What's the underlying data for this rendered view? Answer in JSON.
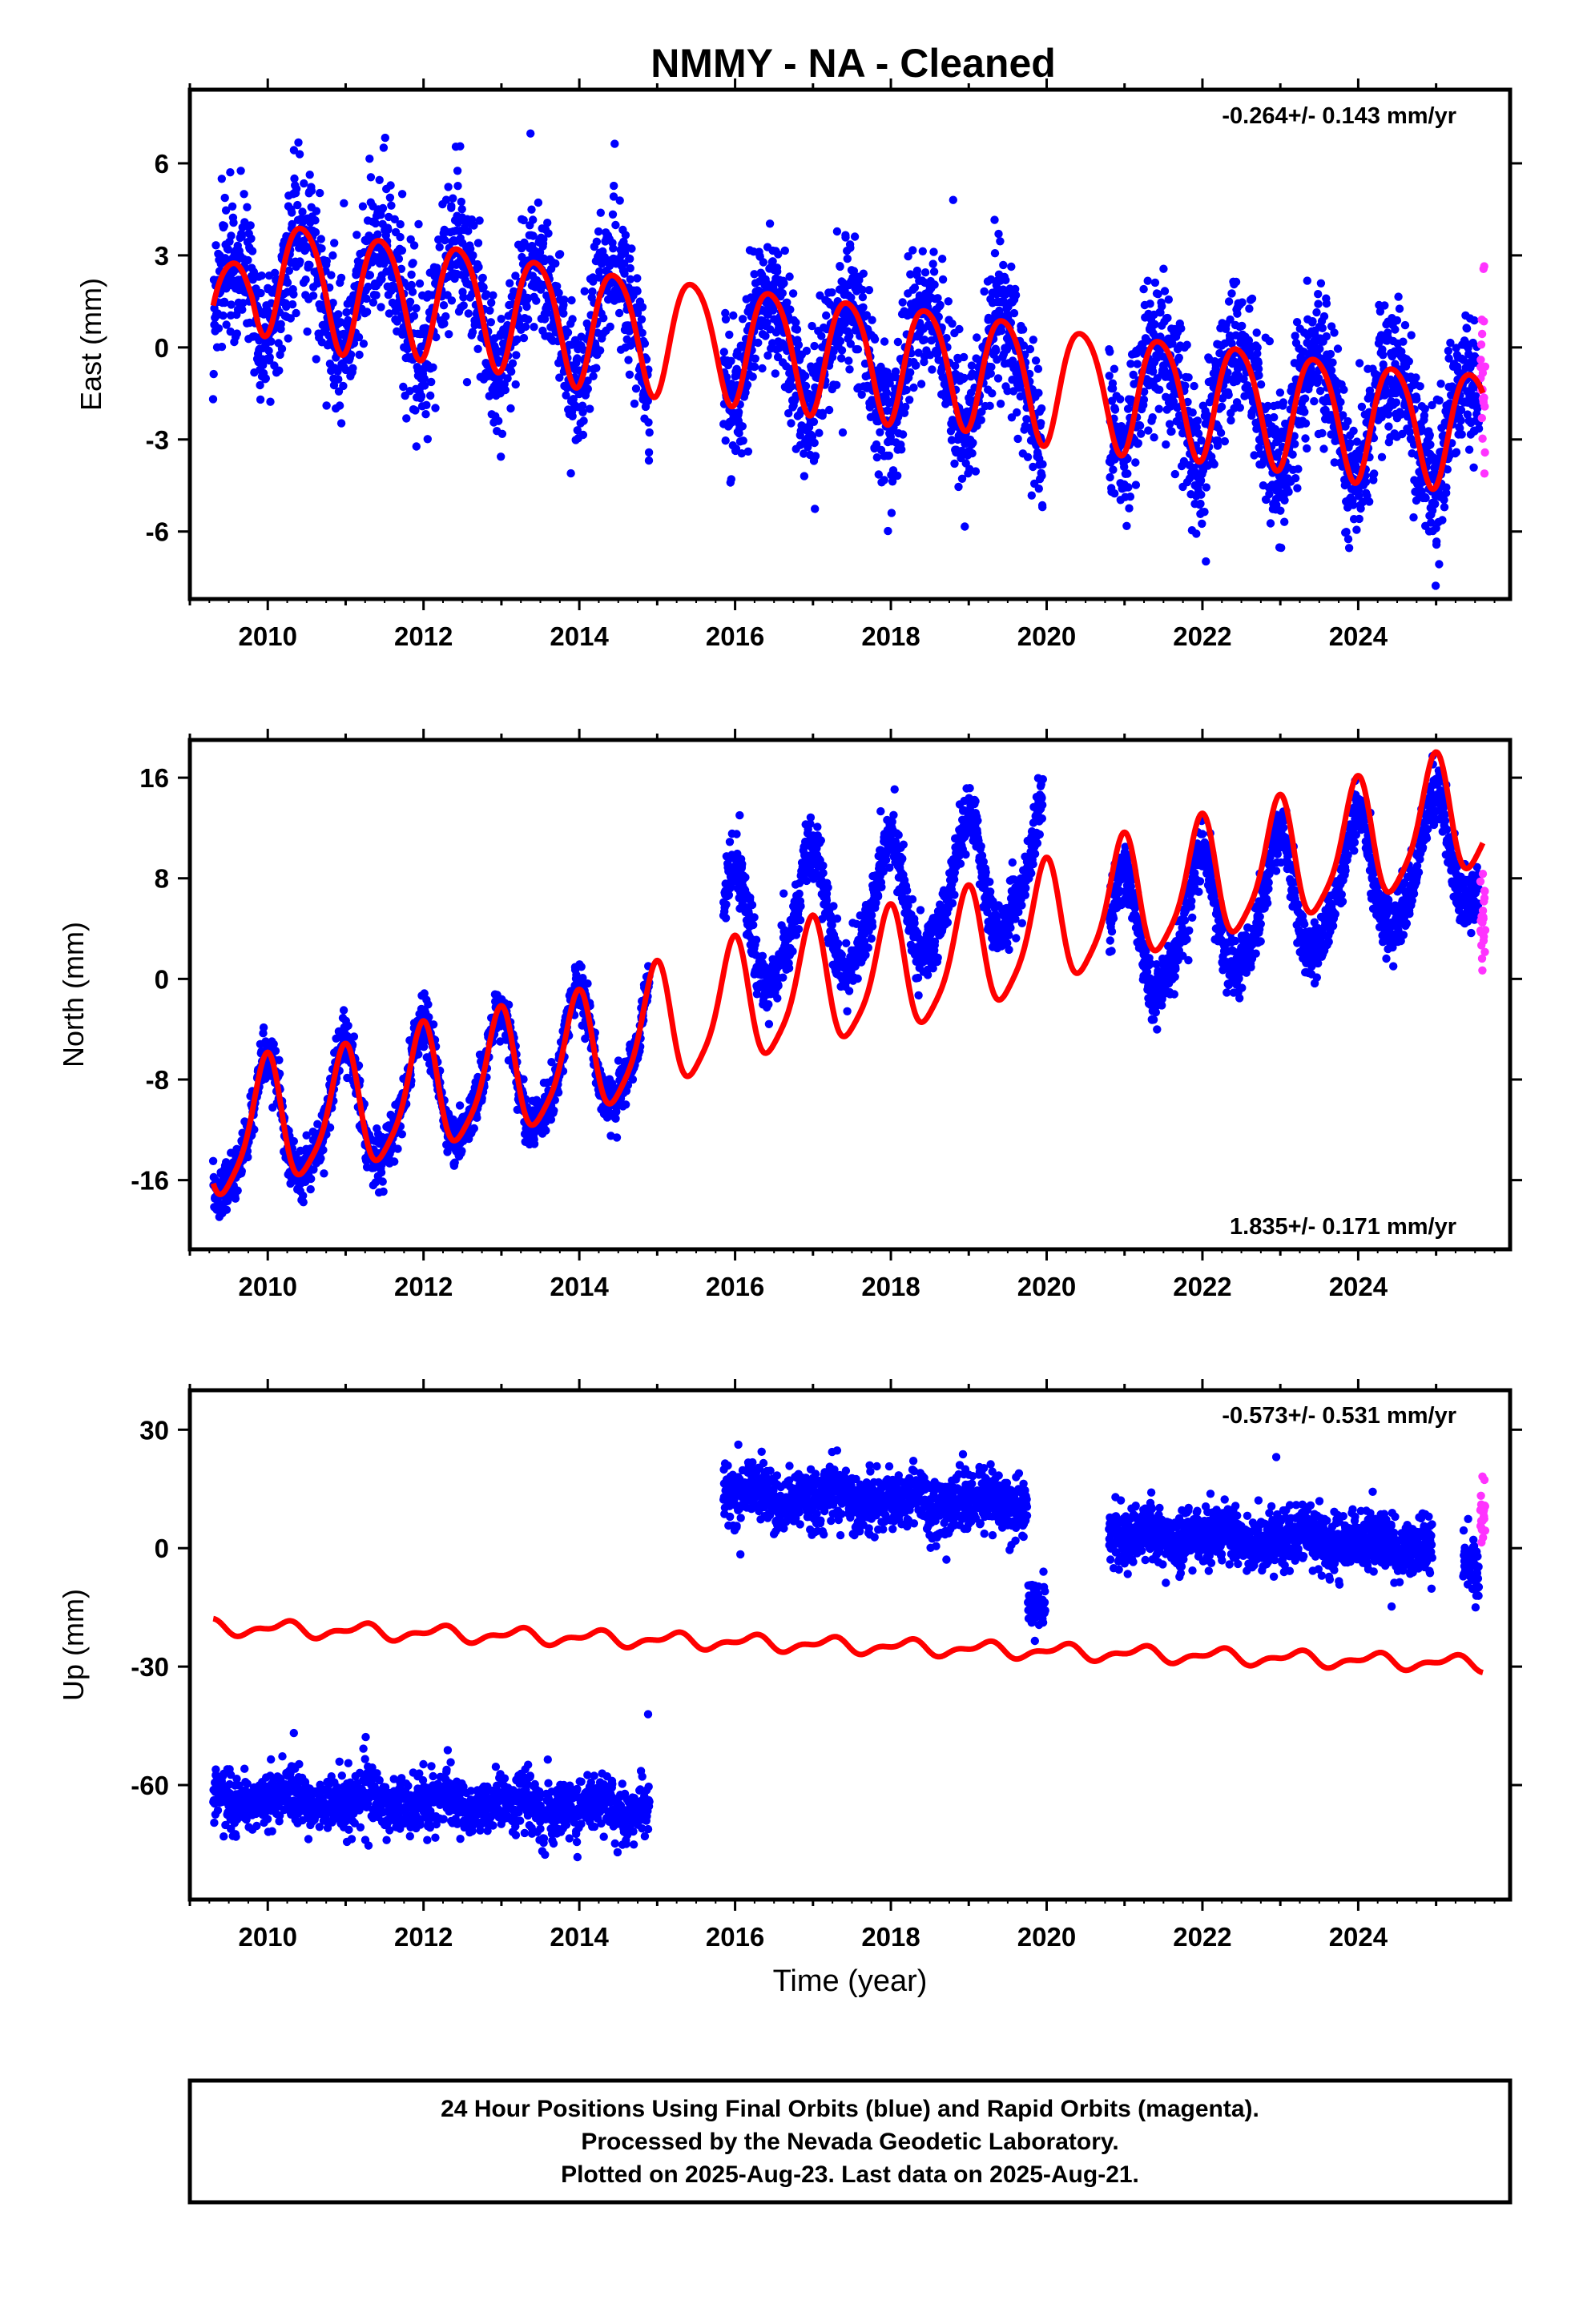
{
  "chart_data": {
    "type": "scatter",
    "title": "NMMY  - NA - Cleaned",
    "xlabel": "Time (year)",
    "x_ticks": [
      2010,
      2012,
      2014,
      2016,
      2018,
      2020,
      2022,
      2024
    ],
    "xlim": [
      2009.0,
      2025.95
    ],
    "colors": {
      "final": "#0000ff",
      "rapid": "#ff33ff",
      "model": "#ff0000"
    },
    "panels": [
      {
        "ylabel": "East (mm)",
        "ylim": [
          -8.2,
          8.4
        ],
        "y_ticks": [
          6,
          3,
          0,
          -3,
          -6
        ],
        "y_tick_labels": [
          "6",
          "3",
          "0",
          "-3",
          "-6"
        ],
        "rate_label": "-0.264+/- 0.143 mm/yr",
        "rate_position": "top-right",
        "model": {
          "offset": 0.8,
          "rate": -0.264,
          "amp": 1.9,
          "phase": 0.2,
          "amp2": 0.25,
          "phase2": 0.1,
          "steps": [],
          "knots": [
            [
              2009.3,
              0.1
            ],
            [
              2009.8,
              2.6
            ],
            [
              2010.9,
              1.9
            ],
            [
              2012.0,
              1.7
            ],
            [
              2013.0,
              1.3
            ],
            [
              2014.0,
              0.8
            ],
            [
              2015.0,
              0.5
            ],
            [
              2016.0,
              0.2
            ],
            [
              2017.0,
              -0.1
            ],
            [
              2018.0,
              -0.4
            ],
            [
              2019.0,
              -0.6
            ],
            [
              2020.0,
              -1.1
            ],
            [
              2021.0,
              -1.4
            ],
            [
              2022.0,
              -1.6
            ],
            [
              2023.0,
              -1.9
            ],
            [
              2024.0,
              -2.3
            ],
            [
              2025.6,
              -2.6
            ]
          ]
        },
        "point_groups": [
          {
            "series": "final",
            "start": 2009.3,
            "end": 2014.9,
            "count": 1450,
            "noise": 1.1
          },
          {
            "series": "final",
            "start": 2015.85,
            "end": 2019.95,
            "count": 1150,
            "noise": 1.1
          },
          {
            "series": "final",
            "start": 2020.8,
            "end": 2025.55,
            "count": 1350,
            "noise": 1.1
          },
          {
            "series": "rapid",
            "start": 2025.57,
            "end": 2025.63,
            "count": 22,
            "noise": 1.6
          }
        ]
      },
      {
        "ylabel": "North (mm)",
        "ylim": [
          -21.5,
          19
        ],
        "y_ticks": [
          16,
          8,
          0,
          -8,
          -16
        ],
        "y_tick_labels": [
          "16",
          "8",
          "0",
          "-8",
          "-16"
        ],
        "rate_label": "1.835+/- 0.171 mm/yr",
        "rate_position": "bottom-right",
        "model": {
          "offset": -13.0,
          "rate": 1.835,
          "amp": 4.8,
          "phase": 1.72,
          "amp2": 1.0,
          "phase2": 0.4,
          "steps": [],
          "knots": [
            [
              2009.3,
              -13.0
            ],
            [
              2010.0,
              -11.5
            ],
            [
              2011.0,
              -10.8
            ],
            [
              2012.0,
              -9.0
            ],
            [
              2013.0,
              -7.8
            ],
            [
              2014.0,
              -6.5
            ],
            [
              2015.0,
              -4.2
            ],
            [
              2016.0,
              -2.2
            ],
            [
              2017.0,
              -0.6
            ],
            [
              2018.0,
              0.3
            ],
            [
              2019.0,
              1.8
            ],
            [
              2020.0,
              4.0
            ],
            [
              2021.0,
              6.0
            ],
            [
              2022.0,
              7.5
            ],
            [
              2023.0,
              9.0
            ],
            [
              2024.0,
              10.5
            ],
            [
              2025.6,
              13.5
            ]
          ]
        },
        "point_groups": [
          {
            "series": "final",
            "start": 2009.3,
            "end": 2014.9,
            "count": 1450,
            "noise": 1.0,
            "shift": 0
          },
          {
            "series": "final",
            "start": 2015.85,
            "end": 2019.95,
            "count": 1150,
            "noise": 1.1,
            "shift": 5.5
          },
          {
            "series": "final",
            "start": 2020.8,
            "end": 2025.55,
            "count": 1350,
            "noise": 1.1,
            "shift": -3.0
          },
          {
            "series": "rapid",
            "start": 2025.57,
            "end": 2025.63,
            "count": 22,
            "noise": 1.5,
            "shift": -6.0
          }
        ]
      },
      {
        "ylabel": "Up (mm)",
        "ylim": [
          -89,
          40
        ],
        "y_ticks": [
          30,
          0,
          -30,
          -60
        ],
        "y_tick_labels": [
          "30",
          "0",
          "-30",
          "-60"
        ],
        "rate_label": "-0.573+/- 0.531 mm/yr",
        "rate_position": "top-right",
        "model": {
          "offset": -20.0,
          "rate": -0.573,
          "amp": 1.6,
          "phase": 0.95,
          "amp2": 0.9,
          "phase2": 0.2,
          "steps": [],
          "knots": []
        },
        "point_groups": [
          {
            "series": "final",
            "start": 2009.3,
            "end": 2014.9,
            "count": 1450,
            "noise": 3.5,
            "shift": -43
          },
          {
            "series": "final",
            "start": 2015.85,
            "end": 2019.75,
            "count": 1050,
            "noise": 3.8,
            "shift": 37
          },
          {
            "series": "final",
            "start": 2019.76,
            "end": 2019.98,
            "count": 70,
            "noise": 3.0,
            "shift": 11
          },
          {
            "series": "final",
            "start": 2020.8,
            "end": 2024.95,
            "count": 1250,
            "noise": 3.6,
            "shift": 30
          },
          {
            "series": "final",
            "start": 2025.35,
            "end": 2025.55,
            "count": 70,
            "noise": 3.5,
            "shift": 25
          },
          {
            "series": "rapid",
            "start": 2025.57,
            "end": 2025.63,
            "count": 22,
            "noise": 6.0,
            "shift": 40
          }
        ]
      }
    ]
  },
  "footer": {
    "line1": "24 Hour Positions Using Final Orbits (blue) and Rapid Orbits (magenta).",
    "line2": "Processed by the Nevada Geodetic Laboratory.",
    "line3": "Plotted on 2025-Aug-23. Last data on 2025-Aug-21."
  }
}
